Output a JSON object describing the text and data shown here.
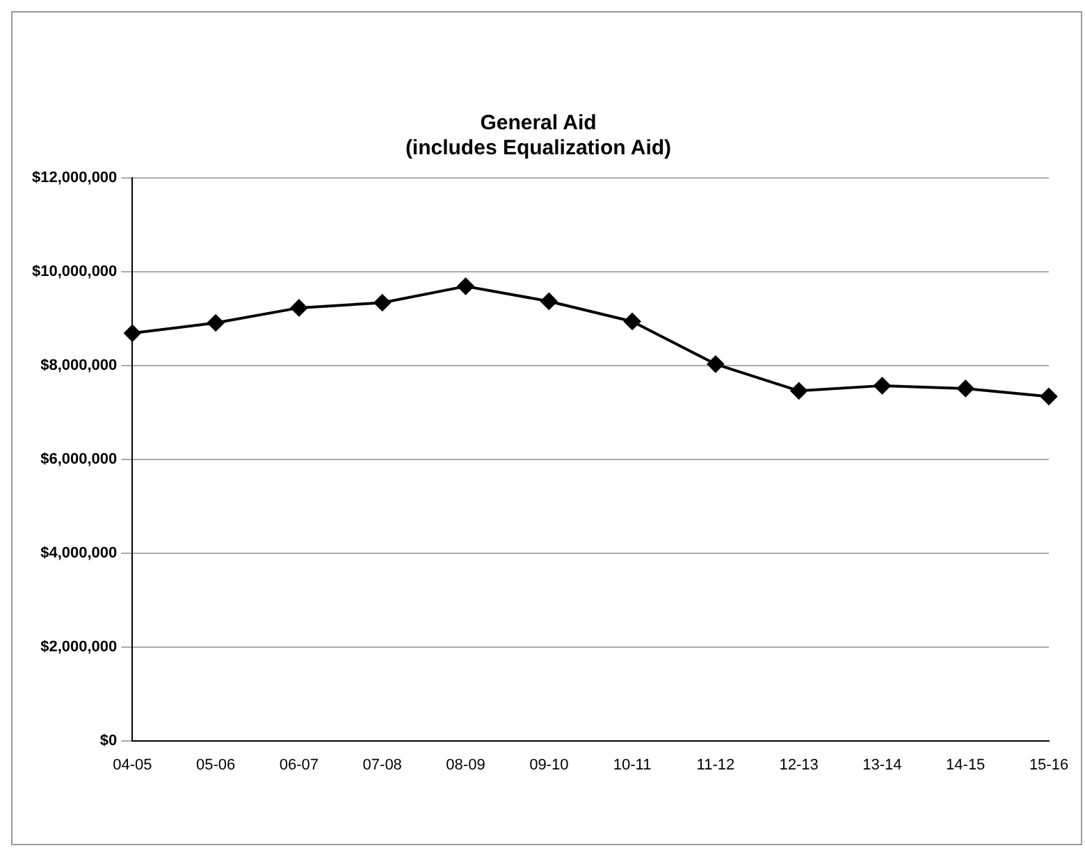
{
  "chart_data": {
    "type": "line",
    "title": [
      "General Aid",
      "(includes Equalization Aid)"
    ],
    "categories": [
      "04-05",
      "05-06",
      "06-07",
      "07-08",
      "08-09",
      "09-10",
      "10-11",
      "11-12",
      "12-13",
      "13-14",
      "14-15",
      "15-16"
    ],
    "values": [
      8690000,
      8910000,
      9230000,
      9340000,
      9690000,
      9370000,
      8940000,
      8030000,
      7460000,
      7570000,
      7510000,
      7340000
    ],
    "color": "#000000",
    "marker": "diamond",
    "ylim": [
      0,
      12000000
    ],
    "yticks": [
      {
        "value": 0,
        "label": "$0"
      },
      {
        "value": 2000000,
        "label": "$2,000,000"
      },
      {
        "value": 4000000,
        "label": "$4,000,000"
      },
      {
        "value": 6000000,
        "label": "$6,000,000"
      },
      {
        "value": 8000000,
        "label": "$8,000,000"
      },
      {
        "value": 10000000,
        "label": "$10,000,000"
      },
      {
        "value": 12000000,
        "label": "$12,000,000"
      }
    ],
    "grid": "y",
    "legend": false
  }
}
